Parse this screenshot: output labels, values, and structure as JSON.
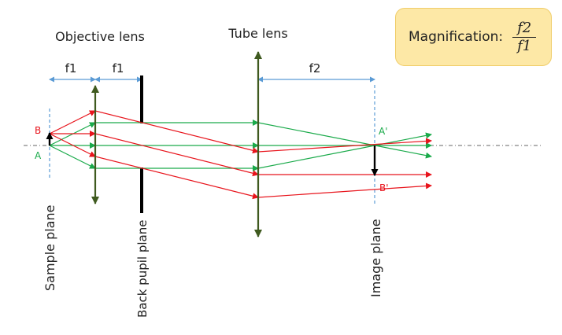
{
  "labels": {
    "objective_lens": "Objective lens",
    "tube_lens": "Tube lens",
    "f1_left": "f1",
    "f1_right": "f1",
    "f2": "f2",
    "point_b": "B",
    "point_a": "A",
    "point_a_prime": "A'",
    "point_b_prime": "B'",
    "sample_plane": "Sample plane",
    "back_pupil_plane": "Back pupil plane",
    "image_plane": "Image plane"
  },
  "magnification": {
    "label": "Magnification:",
    "numerator": "f2",
    "denominator": "f1"
  },
  "colors": {
    "red_rays": "#e8141c",
    "green_rays": "#1aaa4a",
    "lens": "#3f5a1f",
    "dimension": "#5b9bd5",
    "box_fill": "#fde8a6"
  }
}
